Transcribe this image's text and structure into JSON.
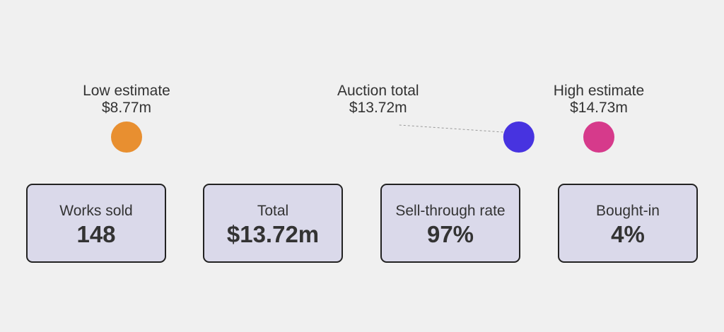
{
  "chart_data": {
    "type": "range-dot",
    "unit": "$m",
    "markers": [
      {
        "key": "low",
        "label": "Low estimate",
        "value_text": "$8.77m",
        "value": 8.77,
        "color": "#e88f30"
      },
      {
        "key": "total",
        "label": "Auction total",
        "value_text": "$13.72m",
        "value": 13.72,
        "color": "#4733e0"
      },
      {
        "key": "high",
        "label": "High estimate",
        "value_text": "$14.73m",
        "value": 14.73,
        "color": "#d63a8b"
      }
    ]
  },
  "stats": [
    {
      "label": "Works sold",
      "value": "148"
    },
    {
      "label": "Total",
      "value": "$13.72m"
    },
    {
      "label": "Sell-through rate",
      "value": "97%"
    },
    {
      "label": "Bought-in",
      "value": "4%"
    }
  ]
}
